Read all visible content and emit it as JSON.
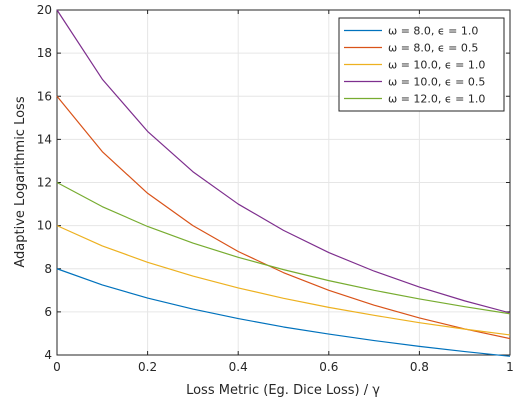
{
  "chart_data": {
    "type": "line",
    "title": "",
    "xlabel": "Loss Metric (Eg. Dice Loss) / γ",
    "ylabel": "Adaptive Logarithmic Loss",
    "xlim": [
      0,
      1
    ],
    "ylim": [
      4,
      20
    ],
    "xticks": [
      0,
      0.2,
      0.4,
      0.6,
      0.8,
      1
    ],
    "xtick_labels": [
      "0",
      "0.2",
      "0.4",
      "0.6",
      "0.8",
      "1"
    ],
    "yticks": [
      4,
      6,
      8,
      10,
      12,
      14,
      16,
      18,
      20
    ],
    "ytick_labels": [
      "4",
      "6",
      "8",
      "10",
      "12",
      "14",
      "16",
      "18",
      "20"
    ],
    "grid": true,
    "legend_position": "top-right",
    "x": [
      0,
      0.1,
      0.2,
      0.3,
      0.4,
      0.5,
      0.6,
      0.7,
      0.8,
      0.9,
      1.0
    ],
    "series": [
      {
        "name": "ω = 8.0, ϵ = 1.0",
        "color": "#0072bd",
        "values": [
          8.0,
          7.25,
          6.64,
          6.13,
          5.69,
          5.3,
          4.97,
          4.67,
          4.4,
          4.16,
          3.94
        ]
      },
      {
        "name": "ω = 8.0, ϵ = 0.5",
        "color": "#d95319",
        "values": [
          16.0,
          13.43,
          11.5,
          10.0,
          8.8,
          7.82,
          7.0,
          6.31,
          5.72,
          5.21,
          4.76
        ]
      },
      {
        "name": "ω = 10.0, ϵ = 1.0",
        "color": "#edb120",
        "values": [
          10.0,
          9.06,
          8.3,
          7.66,
          7.11,
          6.63,
          6.21,
          5.84,
          5.5,
          5.2,
          4.93
        ]
      },
      {
        "name": "ω = 10.0, ϵ = 0.5",
        "color": "#7e2f8e",
        "values": [
          20.0,
          16.79,
          14.37,
          12.5,
          11.0,
          9.78,
          8.75,
          7.89,
          7.15,
          6.51,
          5.95
        ]
      },
      {
        "name": "ω = 12.0, ϵ = 1.0",
        "color": "#77ac30",
        "values": [
          12.0,
          10.88,
          9.96,
          9.19,
          8.53,
          7.96,
          7.45,
          7.0,
          6.6,
          6.24,
          5.91
        ]
      }
    ]
  }
}
